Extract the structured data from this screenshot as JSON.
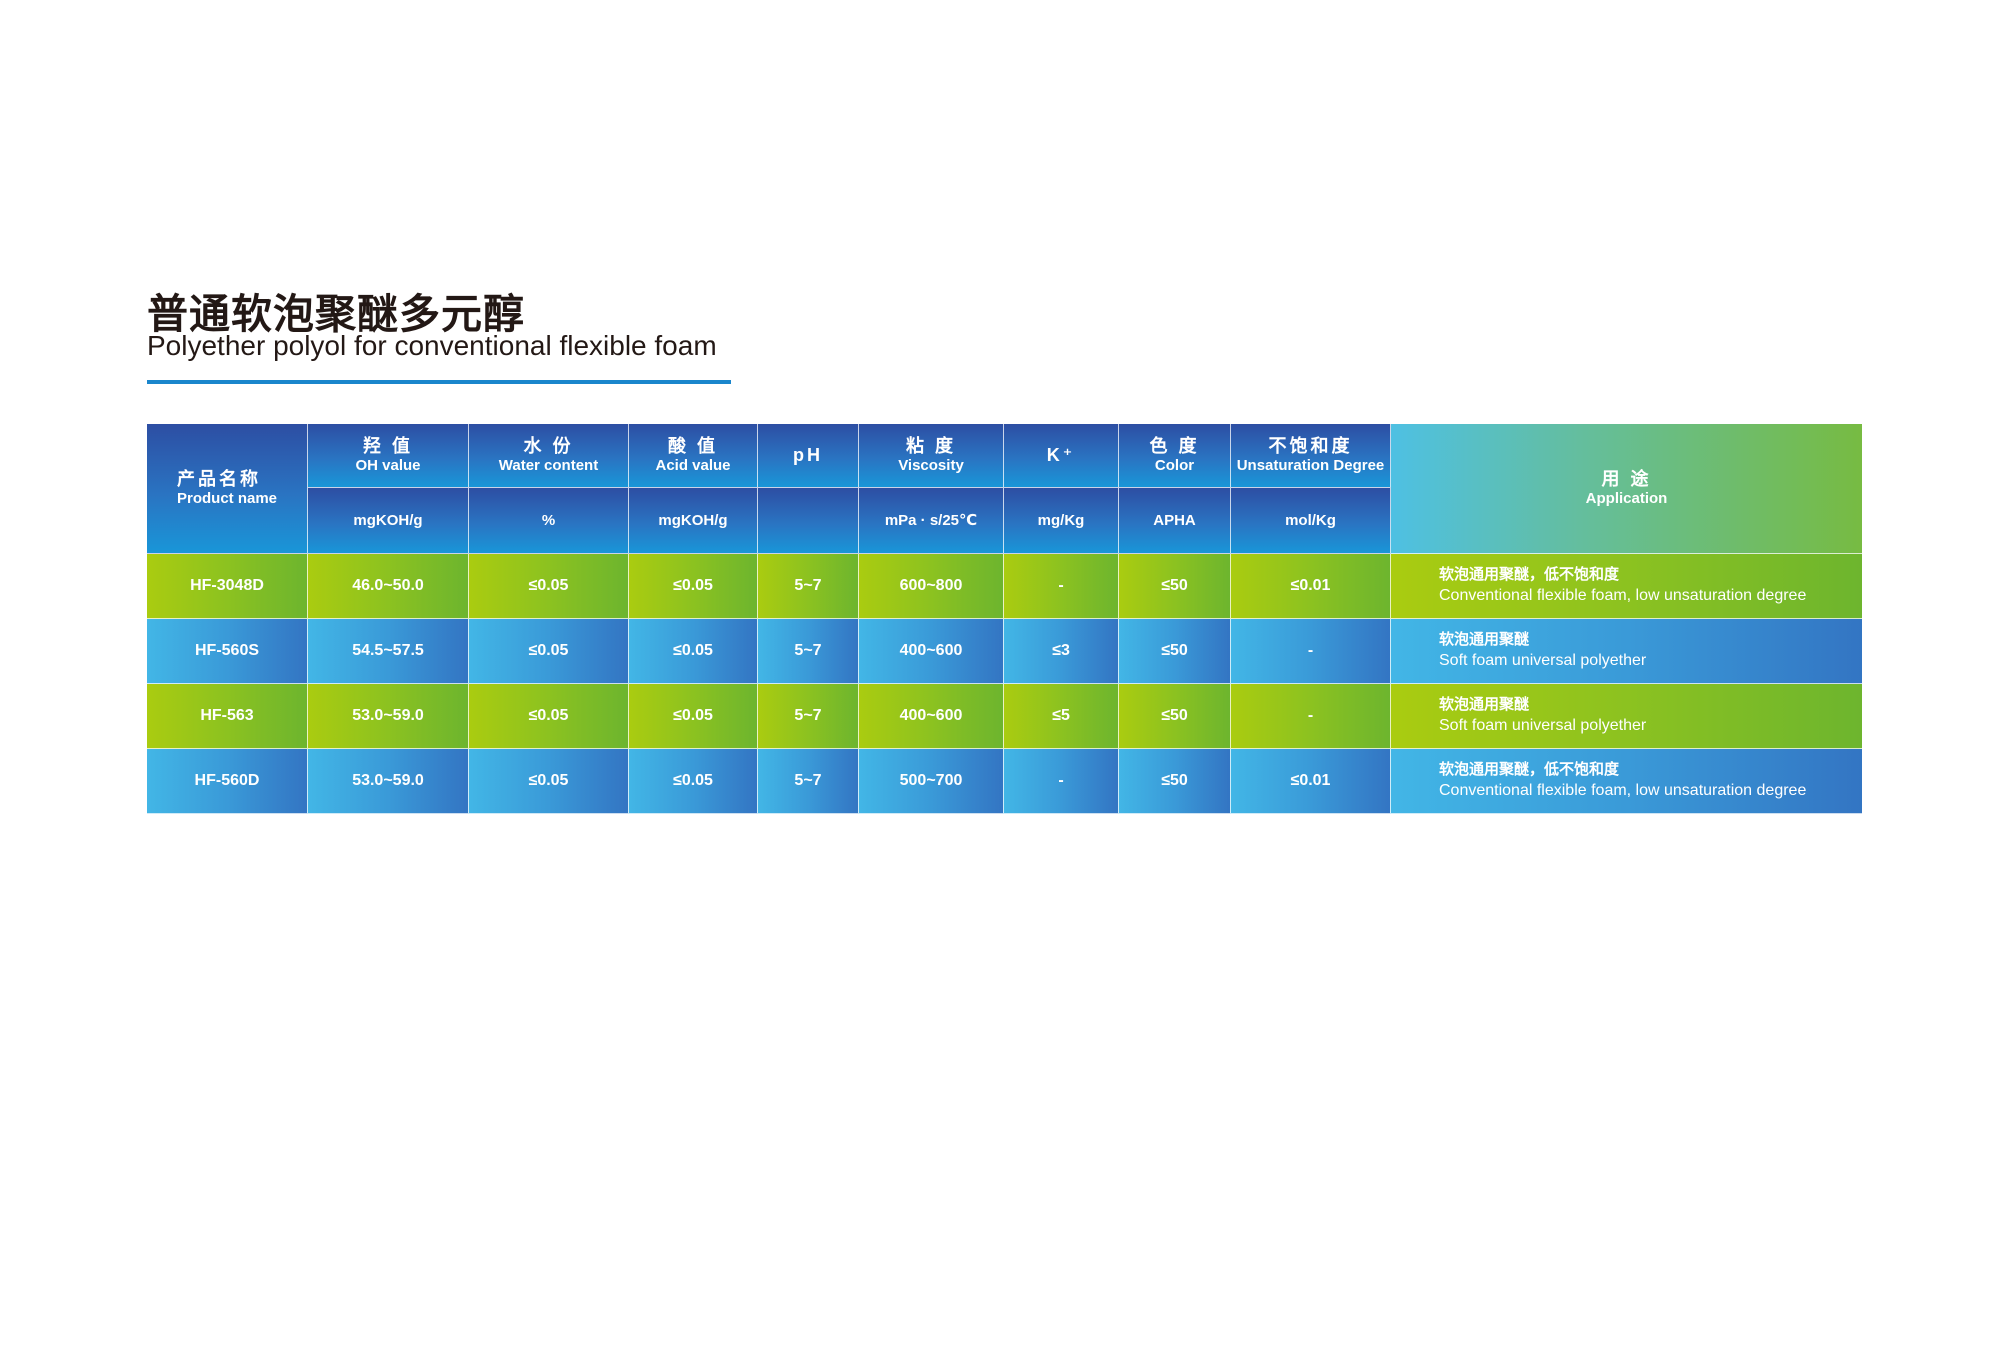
{
  "title_cn": "普通软泡聚醚多元醇",
  "title_en": "Polyether polyol for conventional flexible foam",
  "colors": {
    "accent": "#1a86cc",
    "header_blue": "#2d4ea3",
    "green": "#8cc220",
    "blue": "#3a9ad8"
  },
  "headers": [
    {
      "cn": "产品名称",
      "en": "Product name",
      "unit": ""
    },
    {
      "cn": "羟 值",
      "en": "OH value",
      "unit": "mgKOH/g"
    },
    {
      "cn": "水 份",
      "en": "Water content",
      "unit": "%"
    },
    {
      "cn": "酸 值",
      "en": "Acid value",
      "unit": "mgKOH/g"
    },
    {
      "cn": "",
      "en": "pH",
      "unit": ""
    },
    {
      "cn": "粘 度",
      "en": "Viscosity",
      "unit": "mPa · s/25℃"
    },
    {
      "cn": "",
      "en": "K⁺",
      "unit": "mg/Kg"
    },
    {
      "cn": "色 度",
      "en": "Color",
      "unit": "APHA"
    },
    {
      "cn": "不饱和度",
      "en": "Unsaturation Degree",
      "unit": "mol/Kg"
    },
    {
      "cn": "用 途",
      "en": "Application",
      "unit": ""
    }
  ],
  "rows": [
    {
      "cells": [
        "HF-3048D",
        "46.0~50.0",
        "≤0.05",
        "≤0.05",
        "5~7",
        "600~800",
        "-",
        "≤50",
        "≤0.01"
      ],
      "app_cn": "软泡通用聚醚，低不饱和度",
      "app_en": "Conventional flexible foam, low unsaturation degree"
    },
    {
      "cells": [
        "HF-560S",
        "54.5~57.5",
        "≤0.05",
        "≤0.05",
        "5~7",
        "400~600",
        "≤3",
        "≤50",
        "-"
      ],
      "app_cn": "软泡通用聚醚",
      "app_en": "Soft foam universal polyether"
    },
    {
      "cells": [
        "HF-563",
        "53.0~59.0",
        "≤0.05",
        "≤0.05",
        "5~7",
        "400~600",
        "≤5",
        "≤50",
        "-"
      ],
      "app_cn": "软泡通用聚醚",
      "app_en": "Soft foam universal polyether"
    },
    {
      "cells": [
        "HF-560D",
        "53.0~59.0",
        "≤0.05",
        "≤0.05",
        "5~7",
        "500~700",
        "-",
        "≤50",
        "≤0.01"
      ],
      "app_cn": "软泡通用聚醚，低不饱和度",
      "app_en": "Conventional flexible foam, low unsaturation degree"
    }
  ]
}
